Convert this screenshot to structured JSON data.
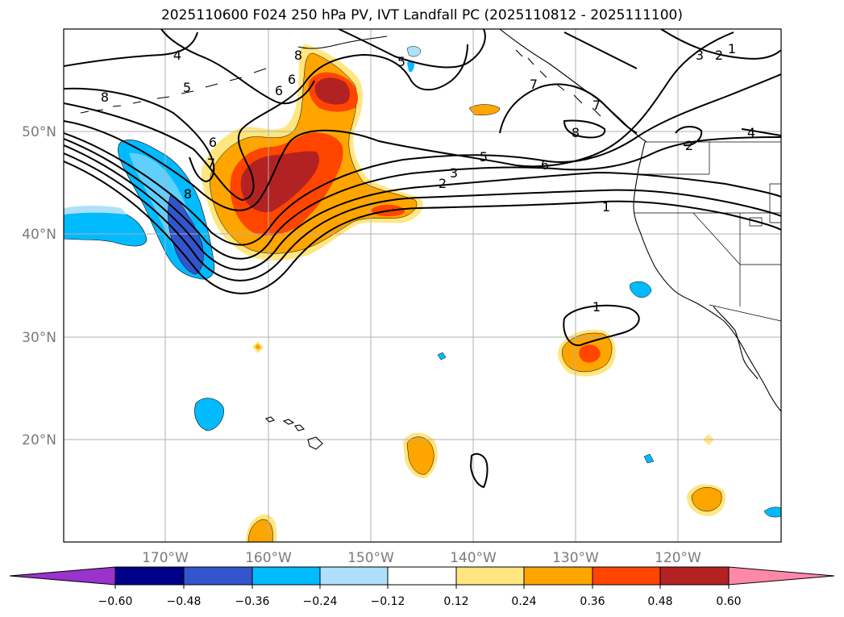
{
  "title": "2025110600 F024 250 hPa PV, IVT Landfall PC (2025110812 - 2025111100)",
  "lat_labels": [
    "50°N",
    "40°N",
    "30°N",
    "20°N"
  ],
  "lon_labels": [
    "170°W",
    "160°W",
    "150°W",
    "140°W",
    "130°W",
    "120°W"
  ],
  "colorbar": {
    "ticks": [
      "−0.60",
      "−0.48",
      "−0.36",
      "−0.24",
      "−0.12",
      "0.12",
      "0.24",
      "0.36",
      "0.48",
      "0.60"
    ],
    "colors": [
      "#9933cc",
      "#000088",
      "#3355cc",
      "#00bbff",
      "#aee0fa",
      "#ffffff",
      "#ffe680",
      "#ffa500",
      "#ff4500",
      "#b22222",
      "#ff88aa"
    ]
  },
  "contour_labels": [
    "4",
    "5",
    "8",
    "6",
    "6",
    "7",
    "8",
    "5",
    "8",
    "6",
    "7",
    "5",
    "6",
    "3",
    "2",
    "1",
    "7",
    "8",
    "3",
    "2",
    "1",
    "4",
    "2",
    "1"
  ],
  "colors": {
    "negative_strong": "#3355cc",
    "negative": "#00bbff",
    "negative_weak": "#aee0fa",
    "positive_weak": "#ffe680",
    "positive": "#ffa500",
    "positive_strong": "#ff4500",
    "positive_max": "#b22222"
  }
}
